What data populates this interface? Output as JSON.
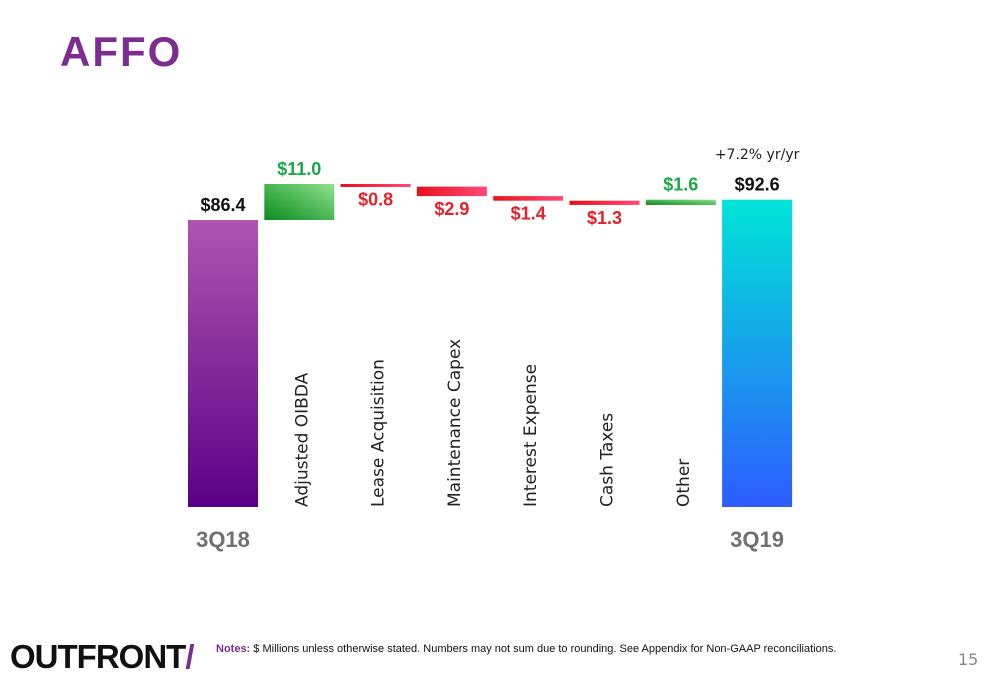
{
  "page": {
    "title": "AFFO",
    "logo_text": "OUTFRONT",
    "logo_mark": "/",
    "notes_label": "Notes:",
    "notes_text": "$ Millions unless otherwise stated. Numbers may not sum due to rounding. See Appendix for Non-GAAP reconciliations.",
    "page_number": "15"
  },
  "colors": {
    "title": "#7b2e8f",
    "increase": "#1aa847",
    "decrease": "#e8202a",
    "start_bar_top": "#b055b0",
    "start_bar_bottom": "#5a0087",
    "end_bar_top": "#00e5d8",
    "end_bar_bottom": "#2d5cff",
    "axis_label": "#707070"
  },
  "chart_data": {
    "type": "waterfall",
    "unit": "$ Millions",
    "annotation": "+7.2% yr/yr",
    "steps": [
      {
        "label": "3Q18",
        "type": "total",
        "value": 86.4,
        "display": "$86.4"
      },
      {
        "label": "Adjusted OIBDA",
        "type": "increase",
        "value": 11.0,
        "display": "$11.0"
      },
      {
        "label": "Lease Acquisition",
        "type": "decrease",
        "value": -0.8,
        "display": "$0.8"
      },
      {
        "label": "Maintenance Capex",
        "type": "decrease",
        "value": -2.9,
        "display": "$2.9"
      },
      {
        "label": "Interest Expense",
        "type": "decrease",
        "value": -1.4,
        "display": "$1.4"
      },
      {
        "label": "Cash Taxes",
        "type": "decrease",
        "value": -1.3,
        "display": "$1.3"
      },
      {
        "label": "Other",
        "type": "increase",
        "value": 1.6,
        "display": "$1.6"
      },
      {
        "label": "3Q19",
        "type": "total",
        "value": 92.6,
        "display": "$92.6"
      }
    ]
  }
}
